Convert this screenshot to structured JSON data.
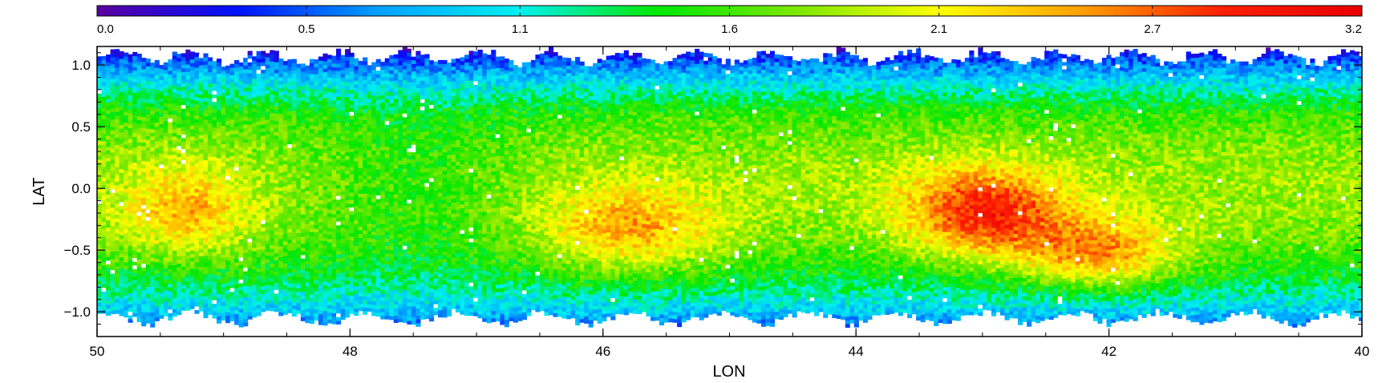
{
  "chart_data": {
    "type": "heatmap",
    "title": "",
    "xlabel": "LON",
    "ylabel": "LAT",
    "xlim": [
      50,
      40
    ],
    "ylim": [
      -1.2,
      1.15
    ],
    "x_ticks": [
      50,
      48,
      46,
      44,
      42,
      40
    ],
    "x_tick_labels": [
      "50",
      "48",
      "46",
      "44",
      "42",
      "40"
    ],
    "y_ticks": [
      1.0,
      0.5,
      0.0,
      -0.5,
      -1.0
    ],
    "y_tick_labels": [
      "1.0",
      "0.5",
      "0.0",
      "−0.5",
      "−1.0"
    ],
    "colorbar": {
      "colormap": "rainbow",
      "range": [
        0.0,
        3.2
      ],
      "tick_values": [
        0.0,
        0.53,
        1.07,
        1.6,
        2.13,
        2.67,
        3.2
      ],
      "tick_labels": [
        "0.0",
        "0.5",
        "1.1",
        "1.6",
        "2.1",
        "2.7",
        "3.2"
      ],
      "colors": [
        "#5a00a0",
        "#0010ff",
        "#00a0ff",
        "#00f0f0",
        "#00e800",
        "#80e800",
        "#ffff00",
        "#ffa000",
        "#ff2000",
        "#e80000"
      ]
    },
    "grid": false,
    "data_latitude_range": [
      -1.05,
      1.05
    ],
    "features": [
      {
        "description": "latitude band, low values near edges",
        "lat": 1.0,
        "value": 0.7
      },
      {
        "description": "latitude band, low values near edges",
        "lat": -1.0,
        "value": 0.9
      },
      {
        "description": "peak region",
        "lon": 43.0,
        "lat": -0.2,
        "value": 3.0
      },
      {
        "description": "peak region",
        "lon": 42.1,
        "lat": -0.55,
        "value": 2.9
      },
      {
        "description": "secondary peak",
        "lon": 45.8,
        "lat": -0.35,
        "value": 2.6
      },
      {
        "description": "secondary peak",
        "lon": 49.3,
        "lat": -0.2,
        "value": 2.4
      }
    ]
  }
}
